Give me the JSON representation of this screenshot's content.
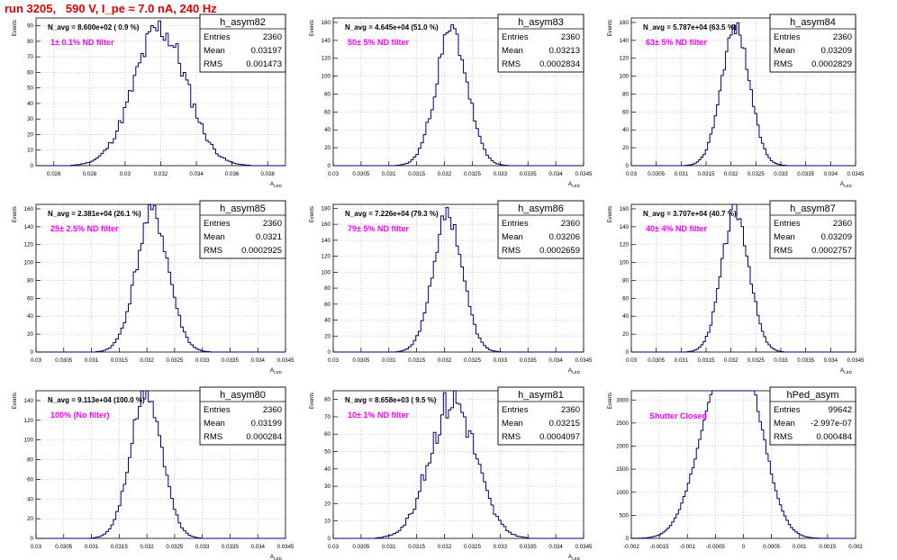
{
  "page": {
    "title": "run 3205,   590 V, I_pe ≈ 7.0 nA, 240 Hz"
  },
  "style": {
    "hist_color": "#00007a",
    "label_color": "#ff00ff",
    "title_color": "#e00000",
    "grid_color": "#bbbbbb"
  },
  "chart_data": [
    {
      "type": "histogram",
      "name": "h_asym82",
      "nav": "N_avg = 8.600e+02 ( 0.9 %)",
      "note": "1± 0.1% ND filter",
      "ylabel": "Events",
      "xlabel": "A_LED",
      "xlim": [
        0.025,
        0.039
      ],
      "ylim": [
        0,
        95
      ],
      "xticks": [
        0.026,
        0.028,
        0.03,
        0.032,
        0.034,
        0.036,
        0.038
      ],
      "xticklabels": [
        "0.026",
        "0.028",
        "0.03",
        "0.032",
        "0.034",
        "0.036",
        "0.038"
      ],
      "yticks": [
        0,
        10,
        20,
        30,
        40,
        50,
        60,
        70,
        80,
        90
      ],
      "stats": {
        "Entries": "2360",
        "Mean": "0.03197",
        "RMS": "0.001473"
      },
      "mean": 0.03197,
      "rms": 0.001473,
      "peak": 88,
      "noise": 0.12,
      "seed": 11
    },
    {
      "type": "histogram",
      "name": "h_asym83",
      "nav": "N_avg = 4.645e+04 (51.0 %)",
      "note": "50± 5% ND filter",
      "ylabel": "Events",
      "xlabel": "A_LED",
      "xlim": [
        0.03,
        0.0345
      ],
      "ylim": [
        0,
        165
      ],
      "xticks": [
        0.03,
        0.0305,
        0.031,
        0.0315,
        0.032,
        0.0325,
        0.033,
        0.0335,
        0.034,
        0.0345
      ],
      "xticklabels": [
        "0.03",
        "0.0305",
        "0.031",
        "0.0315",
        "0.032",
        "0.0325",
        "0.033",
        "0.0335",
        "0.034",
        "0.0345"
      ],
      "yticks": [
        0,
        20,
        40,
        60,
        80,
        100,
        120,
        140,
        160
      ],
      "stats": {
        "Entries": "2360",
        "Mean": "0.03213",
        "RMS": "0.0002834"
      },
      "mean": 0.03213,
      "rms": 0.0002834,
      "peak": 150,
      "noise": 0.1,
      "seed": 23
    },
    {
      "type": "histogram",
      "name": "h_asym84",
      "nav": "N_avg = 5.787e+04 (63.5 %)",
      "note": "63± 5% ND filter",
      "ylabel": "Events",
      "xlabel": "A_LED",
      "xlim": [
        0.03,
        0.0345
      ],
      "ylim": [
        0,
        165
      ],
      "xticks": [
        0.03,
        0.0305,
        0.031,
        0.0315,
        0.032,
        0.0325,
        0.033,
        0.0335,
        0.034,
        0.0345
      ],
      "xticklabels": [
        "0.03",
        "0.0305",
        "0.031",
        "0.0315",
        "0.032",
        "0.0325",
        "0.033",
        "0.0335",
        "0.034",
        "0.0345"
      ],
      "yticks": [
        0,
        20,
        40,
        60,
        80,
        100,
        120,
        140,
        160
      ],
      "stats": {
        "Entries": "2360",
        "Mean": "0.03209",
        "RMS": "0.0002829"
      },
      "mean": 0.03209,
      "rms": 0.0002829,
      "peak": 155,
      "noise": 0.06,
      "seed": 37
    },
    {
      "type": "histogram",
      "name": "h_asym85",
      "nav": "N_avg = 2.381e+04 (26.1 %)",
      "note": "25± 2.5% ND filter",
      "ylabel": "Events",
      "xlabel": "A_LED",
      "xlim": [
        0.03,
        0.0345
      ],
      "ylim": [
        0,
        165
      ],
      "xticks": [
        0.03,
        0.0305,
        0.031,
        0.0315,
        0.032,
        0.0325,
        0.033,
        0.0335,
        0.034,
        0.0345
      ],
      "xticklabels": [
        "0.03",
        "0.0305",
        "0.031",
        "0.0315",
        "0.032",
        "0.0325",
        "0.033",
        "0.0335",
        "0.034",
        "0.0345"
      ],
      "yticks": [
        0,
        20,
        40,
        60,
        80,
        100,
        120,
        140,
        160
      ],
      "stats": {
        "Entries": "2360",
        "Mean": "0.0321",
        "RMS": "0.0002925"
      },
      "mean": 0.0321,
      "rms": 0.0002925,
      "peak": 155,
      "noise": 0.08,
      "seed": 41
    },
    {
      "type": "histogram",
      "name": "h_asym86",
      "nav": "N_avg = 7.226e+04 (79.3 %)",
      "note": "79± 5% ND filter",
      "ylabel": "Events",
      "xlabel": "A_LED",
      "xlim": [
        0.03,
        0.0345
      ],
      "ylim": [
        0,
        185
      ],
      "xticks": [
        0.03,
        0.0305,
        0.031,
        0.0315,
        0.032,
        0.0325,
        0.033,
        0.0335,
        0.034,
        0.0345
      ],
      "xticklabels": [
        "0.03",
        "0.0305",
        "0.031",
        "0.0315",
        "0.032",
        "0.0325",
        "0.033",
        "0.0335",
        "0.034",
        "0.0345"
      ],
      "yticks": [
        0,
        20,
        40,
        60,
        80,
        100,
        120,
        140,
        160,
        180
      ],
      "stats": {
        "Entries": "2360",
        "Mean": "0.03206",
        "RMS": "0.0002659"
      },
      "mean": 0.03206,
      "rms": 0.0002659,
      "peak": 172,
      "noise": 0.07,
      "seed": 53
    },
    {
      "type": "histogram",
      "name": "h_asym87",
      "nav": "N_avg = 3.707e+04 (40.7 %)",
      "note": "40± 4% ND filter",
      "ylabel": "Events",
      "xlabel": "A_LED",
      "xlim": [
        0.03,
        0.0345
      ],
      "ylim": [
        0,
        165
      ],
      "xticks": [
        0.03,
        0.0305,
        0.031,
        0.0315,
        0.032,
        0.0325,
        0.033,
        0.0335,
        0.034,
        0.0345
      ],
      "xticklabels": [
        "0.03",
        "0.0305",
        "0.031",
        "0.0315",
        "0.032",
        "0.0325",
        "0.033",
        "0.0335",
        "0.034",
        "0.0345"
      ],
      "yticks": [
        0,
        20,
        40,
        60,
        80,
        100,
        120,
        140,
        160
      ],
      "stats": {
        "Entries": "2360",
        "Mean": "0.03209",
        "RMS": "0.0002757"
      },
      "mean": 0.03209,
      "rms": 0.0002757,
      "peak": 158,
      "noise": 0.07,
      "seed": 67
    },
    {
      "type": "histogram",
      "name": "h_asym80",
      "nav": "N_avg = 9.113e+04 (100.0 %)",
      "note": "100% (No filter)",
      "ylabel": "Events",
      "xlabel": "A_LED",
      "xlim": [
        0.03,
        0.0345
      ],
      "ylim": [
        0,
        150
      ],
      "xticks": [
        0.03,
        0.0305,
        0.031,
        0.0315,
        0.032,
        0.0325,
        0.033,
        0.0335,
        0.034,
        0.0345
      ],
      "xticklabels": [
        "0.03",
        "0.0305",
        "0.031",
        "0.0315",
        "0.032",
        "0.0325",
        "0.033",
        "0.0335",
        "0.034",
        "0.0345"
      ],
      "yticks": [
        0,
        20,
        40,
        60,
        80,
        100,
        120,
        140
      ],
      "stats": {
        "Entries": "2360",
        "Mean": "0.03199",
        "RMS": "0.000284"
      },
      "mean": 0.03199,
      "rms": 0.000284,
      "peak": 148,
      "noise": 0.08,
      "seed": 71
    },
    {
      "type": "histogram",
      "name": "h_asym81",
      "nav": "N_avg = 8.658e+03 ( 9.5 %)",
      "note": "10± 1% ND filter",
      "ylabel": "Events",
      "xlabel": "A_LED",
      "xlim": [
        0.03,
        0.0345
      ],
      "ylim": [
        0,
        85
      ],
      "xticks": [
        0.03,
        0.0305,
        0.031,
        0.0315,
        0.032,
        0.0325,
        0.033,
        0.0335,
        0.034,
        0.0345
      ],
      "xticklabels": [
        "0.03",
        "0.0305",
        "0.031",
        "0.0315",
        "0.032",
        "0.0325",
        "0.033",
        "0.0335",
        "0.034",
        "0.0345"
      ],
      "yticks": [
        0,
        10,
        20,
        30,
        40,
        50,
        60,
        70,
        80
      ],
      "stats": {
        "Entries": "2360",
        "Mean": "0.03215",
        "RMS": "0.0004097"
      },
      "mean": 0.03215,
      "rms": 0.0004097,
      "peak": 80,
      "noise": 0.14,
      "seed": 83
    },
    {
      "type": "histogram",
      "name": "hPed_asym",
      "nav": "",
      "note": "Shutter Closed",
      "ylabel": "Events",
      "xlabel": "",
      "xlim": [
        -0.002,
        0.002
      ],
      "ylim": [
        0,
        3200
      ],
      "xticks": [
        -0.002,
        -0.0015,
        -0.001,
        -0.0005,
        0,
        0.0005,
        0.001,
        0.0015,
        0.002
      ],
      "xticklabels": [
        "-0.002",
        "-0.0015",
        "-0.001",
        "-0.0005",
        "0",
        "0.0005",
        "0.001",
        "0.0015",
        "0.002"
      ],
      "yticks": [
        0,
        500,
        1000,
        1500,
        2000,
        2500,
        3000
      ],
      "stats": {
        "Entries": "99642",
        "Mean": "-2.997e-07",
        "RMS": "0.000484"
      },
      "mean": 0.0,
      "rms": 0.000484,
      "peak": 3050,
      "noise": 0.025,
      "seed": 97,
      "bimodal": true
    }
  ]
}
